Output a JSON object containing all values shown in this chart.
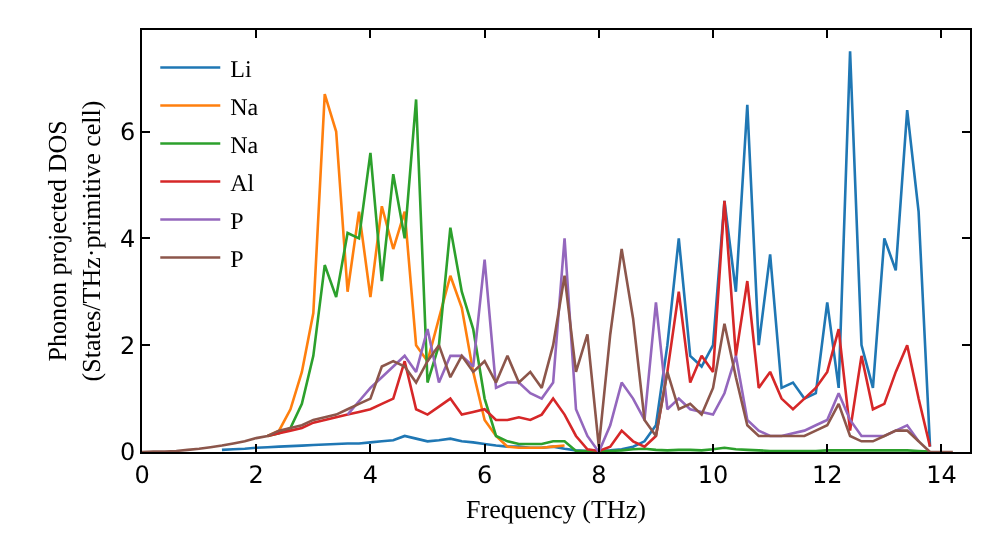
{
  "chart_data": {
    "type": "line",
    "xlabel": "Frequency (THz)",
    "ylabel": "Phonon projected DOS\n(States/THz·primitive cell)",
    "x": [
      0,
      0.2,
      0.4,
      0.6,
      0.8,
      1.0,
      1.2,
      1.4,
      1.6,
      1.8,
      2.0,
      2.2,
      2.4,
      2.6,
      2.8,
      3.0,
      3.2,
      3.4,
      3.6,
      3.8,
      4.0,
      4.2,
      4.4,
      4.6,
      4.8,
      5.0,
      5.2,
      5.4,
      5.6,
      5.8,
      6.0,
      6.2,
      6.4,
      6.6,
      6.8,
      7.0,
      7.2,
      7.4,
      7.6,
      7.8,
      8.0,
      8.2,
      8.4,
      8.6,
      8.8,
      9.0,
      9.2,
      9.4,
      9.6,
      9.8,
      10.0,
      10.2,
      10.4,
      10.6,
      10.8,
      11.0,
      11.2,
      11.4,
      11.6,
      11.8,
      12.0,
      12.2,
      12.4,
      12.6,
      12.8,
      13.0,
      13.2,
      13.4,
      13.6,
      13.8,
      14.0,
      14.2
    ],
    "series": [
      {
        "name": "Li",
        "color": "#1f77b4",
        "values": [
          null,
          null,
          null,
          null,
          null,
          null,
          null,
          0.04,
          0.05,
          0.06,
          0.08,
          0.09,
          0.1,
          0.11,
          0.12,
          0.13,
          0.14,
          0.15,
          0.16,
          0.16,
          0.18,
          0.2,
          0.22,
          0.3,
          0.25,
          0.2,
          0.22,
          0.25,
          0.2,
          0.18,
          0.15,
          0.12,
          0.1,
          0.1,
          0.08,
          0.08,
          0.1,
          0.06,
          0.03,
          0.02,
          0.02,
          0.03,
          0.05,
          0.1,
          0.2,
          0.5,
          2.0,
          4.0,
          1.8,
          1.6,
          2.0,
          4.7,
          3.0,
          6.5,
          2.0,
          3.7,
          1.2,
          1.3,
          1.0,
          1.1,
          2.8,
          1.2,
          7.5,
          2.0,
          1.2,
          4.0,
          3.4,
          6.4,
          4.5,
          0.1,
          null,
          null
        ]
      },
      {
        "name": "Na",
        "color": "#ff7f0e",
        "values": [
          null,
          null,
          null,
          null,
          null,
          null,
          null,
          null,
          null,
          null,
          null,
          0.3,
          0.4,
          0.8,
          1.5,
          2.6,
          6.7,
          6.0,
          3.0,
          4.5,
          2.9,
          4.6,
          3.8,
          4.5,
          2.0,
          1.7,
          2.5,
          3.3,
          2.7,
          1.5,
          0.6,
          0.3,
          0.1,
          0.08,
          0.08,
          0.08,
          0.1,
          0.12,
          null,
          null,
          null,
          null,
          null,
          null,
          null,
          null,
          null,
          null,
          null,
          null,
          null,
          null,
          null,
          null,
          null,
          null,
          null,
          null,
          null,
          null,
          null,
          null,
          null,
          null,
          null,
          null,
          null,
          null,
          null,
          null,
          null,
          null
        ]
      },
      {
        "name": "Na",
        "color": "#2ca02c",
        "values": [
          null,
          null,
          null,
          null,
          null,
          null,
          null,
          null,
          null,
          null,
          null,
          0.3,
          0.35,
          0.45,
          0.9,
          1.8,
          3.5,
          2.9,
          4.1,
          4.0,
          5.6,
          3.2,
          5.2,
          4.0,
          6.6,
          1.3,
          2.0,
          4.2,
          3.0,
          2.3,
          1.0,
          0.3,
          0.2,
          0.15,
          0.15,
          0.15,
          0.2,
          0.2,
          0.02,
          0.02,
          0.02,
          0.02,
          0.03,
          0.05,
          0.06,
          0.04,
          0.03,
          0.04,
          0.04,
          0.03,
          0.05,
          0.08,
          0.05,
          0.04,
          0.03,
          0.02,
          0.02,
          0.02,
          0.02,
          0.02,
          0.03,
          0.03,
          0.03,
          0.03,
          0.03,
          0.03,
          0.03,
          0.03,
          0.02,
          0.01,
          null,
          null
        ]
      },
      {
        "name": "Al",
        "color": "#d62728",
        "values": [
          null,
          null,
          null,
          null,
          null,
          null,
          null,
          null,
          null,
          null,
          null,
          0.3,
          0.35,
          0.4,
          0.45,
          0.55,
          0.6,
          0.65,
          0.7,
          0.75,
          0.8,
          0.9,
          1.0,
          1.7,
          0.8,
          0.7,
          0.85,
          1.0,
          0.7,
          0.75,
          0.8,
          0.6,
          0.6,
          0.65,
          0.6,
          0.7,
          1.0,
          0.7,
          0.3,
          0.05,
          0.02,
          0.1,
          0.4,
          0.2,
          0.1,
          0.3,
          1.5,
          3.0,
          1.3,
          1.8,
          1.5,
          4.7,
          1.8,
          3.2,
          1.2,
          1.5,
          1.0,
          0.8,
          1.0,
          1.2,
          1.5,
          2.3,
          0.4,
          1.8,
          0.8,
          0.9,
          1.5,
          2.0,
          1.0,
          0.1,
          null,
          null
        ]
      },
      {
        "name": "P",
        "color": "#9467bd",
        "values": [
          null,
          null,
          null,
          null,
          null,
          null,
          null,
          null,
          null,
          null,
          null,
          null,
          null,
          null,
          null,
          null,
          null,
          null,
          0.7,
          0.95,
          1.2,
          1.4,
          1.6,
          1.8,
          1.5,
          2.3,
          1.3,
          1.8,
          1.8,
          1.6,
          3.6,
          1.2,
          1.3,
          1.3,
          1.1,
          1.0,
          1.3,
          4.0,
          0.8,
          0.3,
          0,
          0.5,
          1.3,
          1.0,
          0.6,
          2.8,
          0.8,
          1.0,
          0.8,
          0.75,
          0.7,
          1.1,
          1.8,
          0.6,
          0.4,
          0.3,
          0.3,
          0.35,
          0.4,
          0.5,
          0.6,
          1.1,
          0.6,
          0.3,
          0.3,
          0.3,
          0.4,
          0.5,
          0.2,
          null,
          null,
          null
        ]
      },
      {
        "name": "P",
        "color": "#8c564b",
        "values": [
          0,
          0.01,
          0.01,
          0.02,
          0.04,
          0.06,
          0.09,
          0.12,
          0.16,
          0.2,
          0.26,
          0.3,
          0.4,
          0.45,
          0.5,
          0.6,
          0.65,
          0.7,
          0.8,
          0.9,
          1.0,
          1.6,
          1.7,
          1.6,
          1.3,
          1.7,
          2.0,
          1.4,
          1.8,
          1.5,
          1.7,
          1.3,
          1.8,
          1.3,
          1.5,
          1.2,
          2.0,
          3.3,
          1.5,
          2.2,
          0.1,
          2.2,
          3.8,
          2.5,
          0.6,
          0.3,
          1.5,
          0.8,
          0.9,
          0.7,
          1.2,
          2.4,
          1.4,
          0.5,
          0.3,
          0.3,
          0.3,
          0.3,
          0.3,
          0.4,
          0.5,
          0.9,
          0.3,
          0.2,
          0.2,
          0.3,
          0.4,
          0.4,
          0.2,
          0,
          0,
          0
        ]
      }
    ],
    "xlim": [
      0,
      14.5
    ],
    "xticks": [
      0,
      2,
      4,
      6,
      8,
      10,
      12,
      14
    ],
    "ylim": [
      0,
      7.9
    ],
    "yticks": [
      0,
      2,
      4,
      6
    ],
    "legend": "top left",
    "marker": "none",
    "line_style": "solid"
  }
}
